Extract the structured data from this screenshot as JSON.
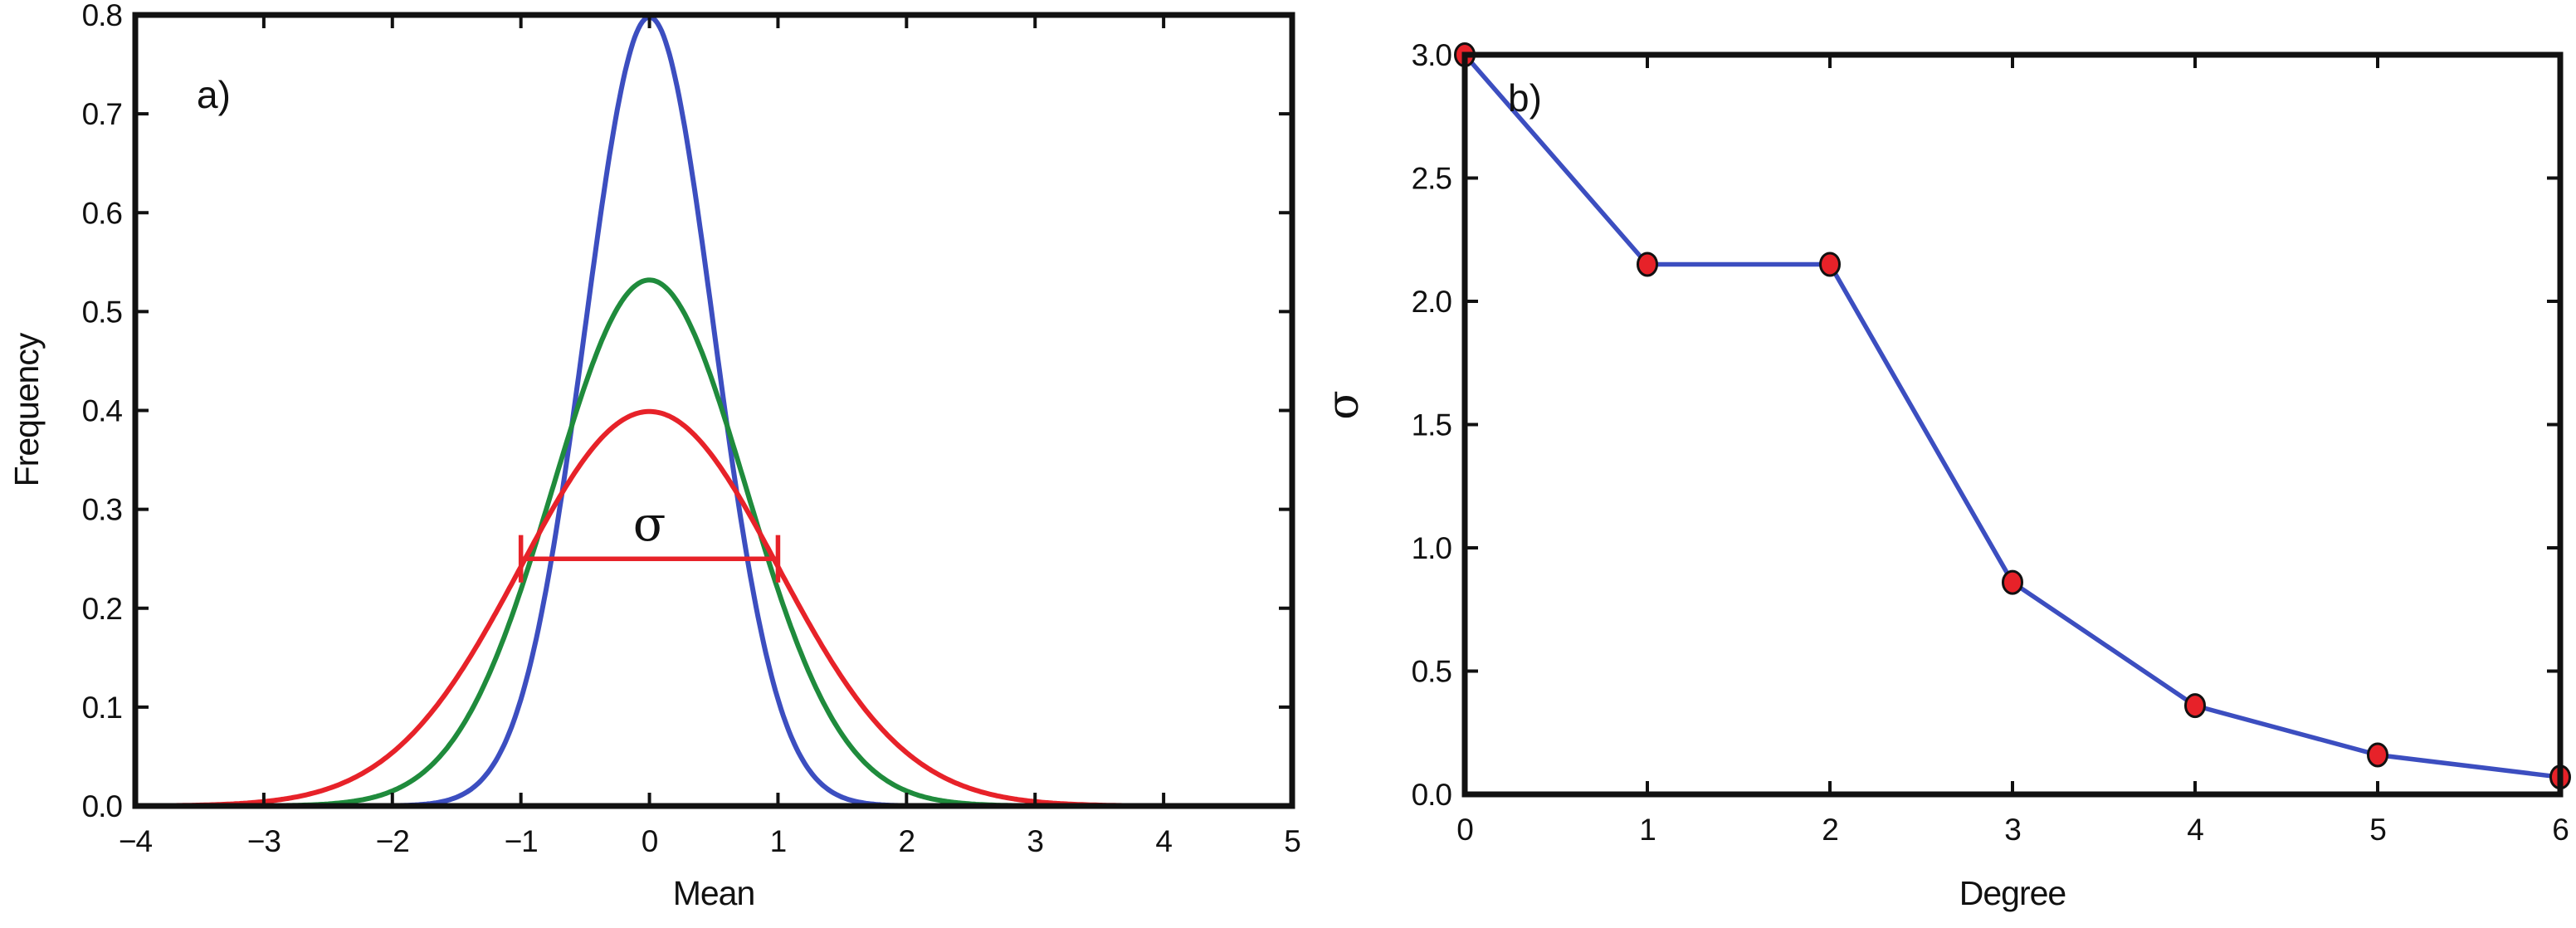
{
  "figure": {
    "background": "#ffffff",
    "spine_color": "#111111"
  },
  "chart_data": [
    {
      "type": "line",
      "panel": "a)",
      "xlabel": "Mean",
      "ylabel": "Frequency",
      "xlim": [
        -4,
        5
      ],
      "ylim": [
        0,
        0.8
      ],
      "grid": false,
      "legend": "none",
      "xticks": [
        -4,
        -3,
        -2,
        -1,
        0,
        1,
        2,
        3,
        4,
        5
      ],
      "xticklabels": [
        "−4",
        "−3",
        "−2",
        "−1",
        "0",
        "1",
        "2",
        "3",
        "4",
        "5"
      ],
      "yticks": [
        0.0,
        0.1,
        0.2,
        0.3,
        0.4,
        0.5,
        0.6,
        0.7,
        0.8
      ],
      "yticklabels": [
        "0.0",
        "0.1",
        "0.2",
        "0.3",
        "0.4",
        "0.5",
        "0.6",
        "0.7",
        "0.8"
      ],
      "series": [
        {
          "name": "gaussian-sigma-0.5",
          "kind": "gaussian",
          "mu": 0,
          "sigma": 0.5,
          "peak": 0.798,
          "color": "#3c4ec0"
        },
        {
          "name": "gaussian-sigma-0.75",
          "kind": "gaussian",
          "mu": 0,
          "sigma": 0.75,
          "peak": 0.532,
          "color": "#1f8b3c"
        },
        {
          "name": "gaussian-sigma-1.0",
          "kind": "gaussian",
          "mu": 0,
          "sigma": 1.0,
          "peak": 0.399,
          "color": "#e72229"
        }
      ],
      "annotation": {
        "text": "σ",
        "line_y": 0.25,
        "x_from": -1,
        "x_to": 1,
        "cap_half_height": 0.024,
        "label_x": 0,
        "label_y": 0.27,
        "color": "#e72229"
      }
    },
    {
      "type": "line",
      "panel": "b)",
      "xlabel": "Degree",
      "ylabel": "σ",
      "xlim": [
        0,
        6
      ],
      "ylim": [
        0,
        3
      ],
      "grid": false,
      "legend": "none",
      "xticks": [
        0,
        1,
        2,
        3,
        4,
        5,
        6
      ],
      "xticklabels": [
        "0",
        "1",
        "2",
        "3",
        "4",
        "5",
        "6"
      ],
      "yticks": [
        0.0,
        0.5,
        1.0,
        1.5,
        2.0,
        2.5,
        3.0
      ],
      "yticklabels": [
        "0.0",
        "0.5",
        "1.0",
        "1.5",
        "2.0",
        "2.5",
        "3.0"
      ],
      "series": [
        {
          "name": "sigma-vs-degree",
          "kind": "points",
          "x": [
            0,
            1,
            2,
            3,
            4,
            5,
            6
          ],
          "y": [
            3.0,
            2.15,
            2.15,
            0.86,
            0.36,
            0.16,
            0.07
          ],
          "line_color": "#3c4ec0",
          "marker": "circle",
          "marker_color": "#e72229",
          "marker_edge_color": "#111111"
        }
      ]
    }
  ]
}
